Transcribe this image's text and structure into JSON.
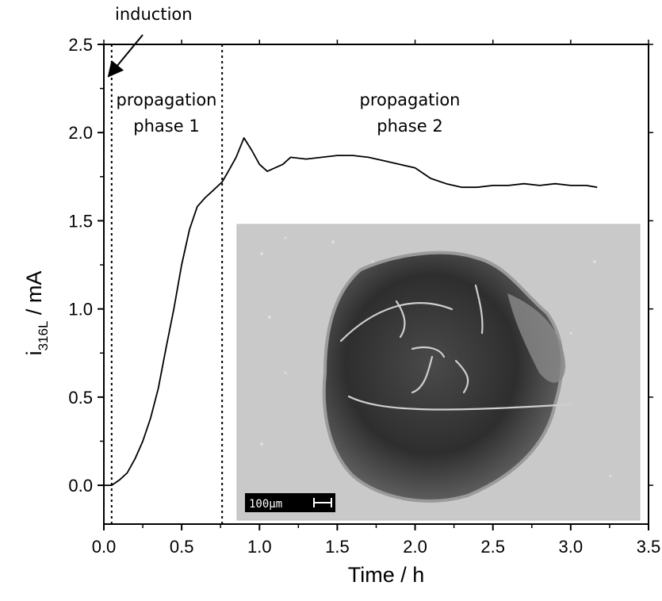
{
  "chart_data": {
    "type": "line",
    "xlabel": "Time / h",
    "ylabel": {
      "main": "i",
      "subscript": "316L",
      "unit": " / mA"
    },
    "xlim": [
      0,
      3.5
    ],
    "ylim": [
      -0.22,
      2.5
    ],
    "xticks": [
      "0.0",
      "0.5",
      "1.0",
      "1.5",
      "2.0",
      "2.5",
      "3.0",
      "3.5"
    ],
    "yticks": [
      "0.0",
      "0.5",
      "1.0",
      "1.5",
      "2.0",
      "2.5"
    ],
    "grid": false,
    "phase_boundaries": [
      0.05,
      0.76
    ],
    "annotations": {
      "induction": "induction",
      "phase1_line1": "propagation",
      "phase1_line2": "phase 1",
      "phase2_line1": "propagation",
      "phase2_line2": "phase 2"
    },
    "inset": {
      "kind": "SEM micrograph of corrosion pit",
      "scale_bar_label": "100μm"
    },
    "series": [
      {
        "x": [
          0.0,
          0.05,
          0.1,
          0.15,
          0.2,
          0.25,
          0.3,
          0.35,
          0.4,
          0.45,
          0.5,
          0.55,
          0.6,
          0.65,
          0.7,
          0.76,
          0.8,
          0.85,
          0.9,
          0.95,
          1.0,
          1.05,
          1.1,
          1.15,
          1.2,
          1.3,
          1.4,
          1.5,
          1.6,
          1.7,
          1.8,
          1.9,
          2.0,
          2.1,
          2.2,
          2.3,
          2.4,
          2.5,
          2.6,
          2.7,
          2.8,
          2.9,
          3.0,
          3.1,
          3.17
        ],
        "values": [
          0.0,
          0.0,
          0.03,
          0.07,
          0.15,
          0.25,
          0.38,
          0.55,
          0.78,
          1.0,
          1.25,
          1.45,
          1.58,
          1.63,
          1.67,
          1.72,
          1.78,
          1.86,
          1.97,
          1.9,
          1.82,
          1.78,
          1.8,
          1.82,
          1.86,
          1.85,
          1.86,
          1.87,
          1.87,
          1.86,
          1.84,
          1.82,
          1.8,
          1.74,
          1.71,
          1.69,
          1.69,
          1.7,
          1.7,
          1.71,
          1.7,
          1.71,
          1.7,
          1.7,
          1.69
        ]
      }
    ]
  }
}
